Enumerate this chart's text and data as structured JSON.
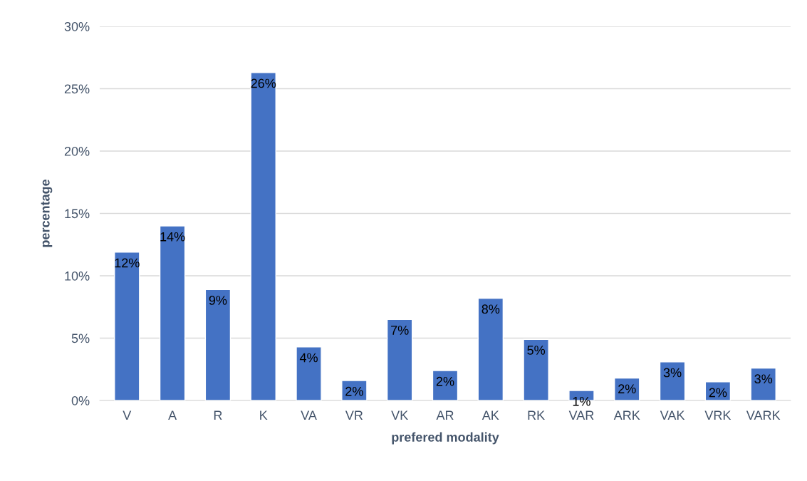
{
  "chart_data": {
    "type": "bar",
    "xlabel": "prefered modality",
    "ylabel": "percentage",
    "categories": [
      "V",
      "A",
      "R",
      "K",
      "VA",
      "VR",
      "VK",
      "AR",
      "AK",
      "RK",
      "VAR",
      "ARK",
      "VAK",
      "VRK",
      "VARK"
    ],
    "values": [
      11.9,
      14.0,
      8.9,
      26.3,
      4.3,
      1.6,
      6.5,
      2.4,
      8.2,
      4.9,
      0.8,
      1.8,
      3.1,
      1.5,
      2.6
    ],
    "value_labels": [
      "12%",
      "14%",
      "9%",
      "26%",
      "4%",
      "2%",
      "7%",
      "2%",
      "8%",
      "5%",
      "1%",
      "2%",
      "3%",
      "2%",
      "3%"
    ],
    "color": "#4472c4",
    "ylim": [
      0,
      30
    ],
    "yticks": [
      {
        "value": 0,
        "label": "0%"
      },
      {
        "value": 5,
        "label": "5%"
      },
      {
        "value": 10,
        "label": "10%"
      },
      {
        "value": 15,
        "label": "15%"
      },
      {
        "value": 20,
        "label": "20%"
      },
      {
        "value": 25,
        "label": "25%"
      },
      {
        "value": 30,
        "label": "30%"
      }
    ],
    "grid": "y",
    "legend": false
  }
}
